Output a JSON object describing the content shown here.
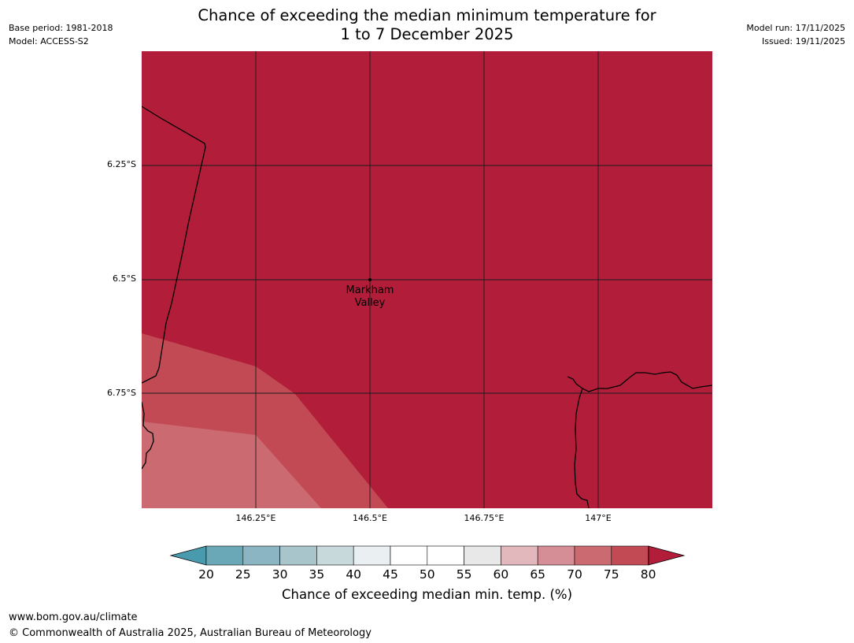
{
  "header": {
    "base_period": "Base period: 1981-2018",
    "model": "Model: ACCESS-S2",
    "model_run": "Model run: 17/11/2025",
    "issued": "Issued: 19/11/2025",
    "title_line1": "Chance of exceeding the median minimum temperature for",
    "title_line2": "1 to 7 December 2025"
  },
  "map": {
    "latitude_labels": [
      "6.25°S",
      "6.5°S",
      "6.75°S"
    ],
    "longitude_labels": [
      "146.25°E",
      "146.5°E",
      "146.75°E",
      "147°E"
    ],
    "place": {
      "name": "Markham Valley",
      "line1": "Markham",
      "line2": "Valley"
    },
    "region_colors": {
      "high": "#b21e39",
      "band_75_80": "#c14a55",
      "band_70_75": "#cc6a72"
    }
  },
  "colorbar": {
    "ticks": [
      "20",
      "25",
      "30",
      "35",
      "40",
      "45",
      "50",
      "55",
      "60",
      "65",
      "70",
      "75",
      "80"
    ],
    "colors": [
      "#6aa8b7",
      "#8bb5c3",
      "#a8c5cb",
      "#c8d9dc",
      "#eaf0f2",
      "#ffffff",
      "#ffffff",
      "#e8e8e8",
      "#e3b8bc",
      "#d68e96",
      "#cc6a72",
      "#c14a55"
    ],
    "under_color": "#4a9aae",
    "over_color": "#b21e39",
    "label": "Chance of exceeding median min. temp. (%)"
  },
  "footer": {
    "url": "www.bom.gov.au/climate",
    "copyright": "© Commonwealth of Australia 2025, Australian Bureau of Meteorology"
  }
}
